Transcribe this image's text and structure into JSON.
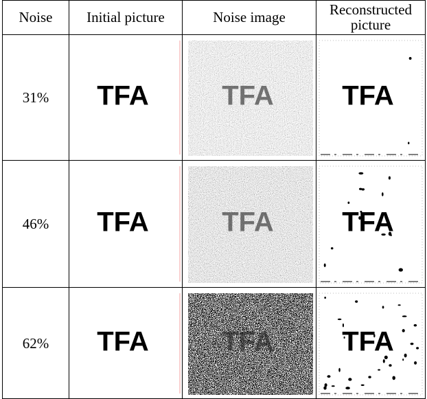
{
  "table": {
    "header": [
      "Noise",
      "Initial picture",
      "Noise image",
      "Reconstructed picture"
    ],
    "rows": [
      {
        "noise": "31%",
        "images": [
          "TFA",
          "TFA",
          "TFA"
        ]
      },
      {
        "noise": "46%",
        "images": [
          "TFA",
          "TFA",
          "TFA"
        ]
      },
      {
        "noise": "62%",
        "images": [
          "TFA",
          "TFA",
          "TFA"
        ]
      }
    ]
  }
}
